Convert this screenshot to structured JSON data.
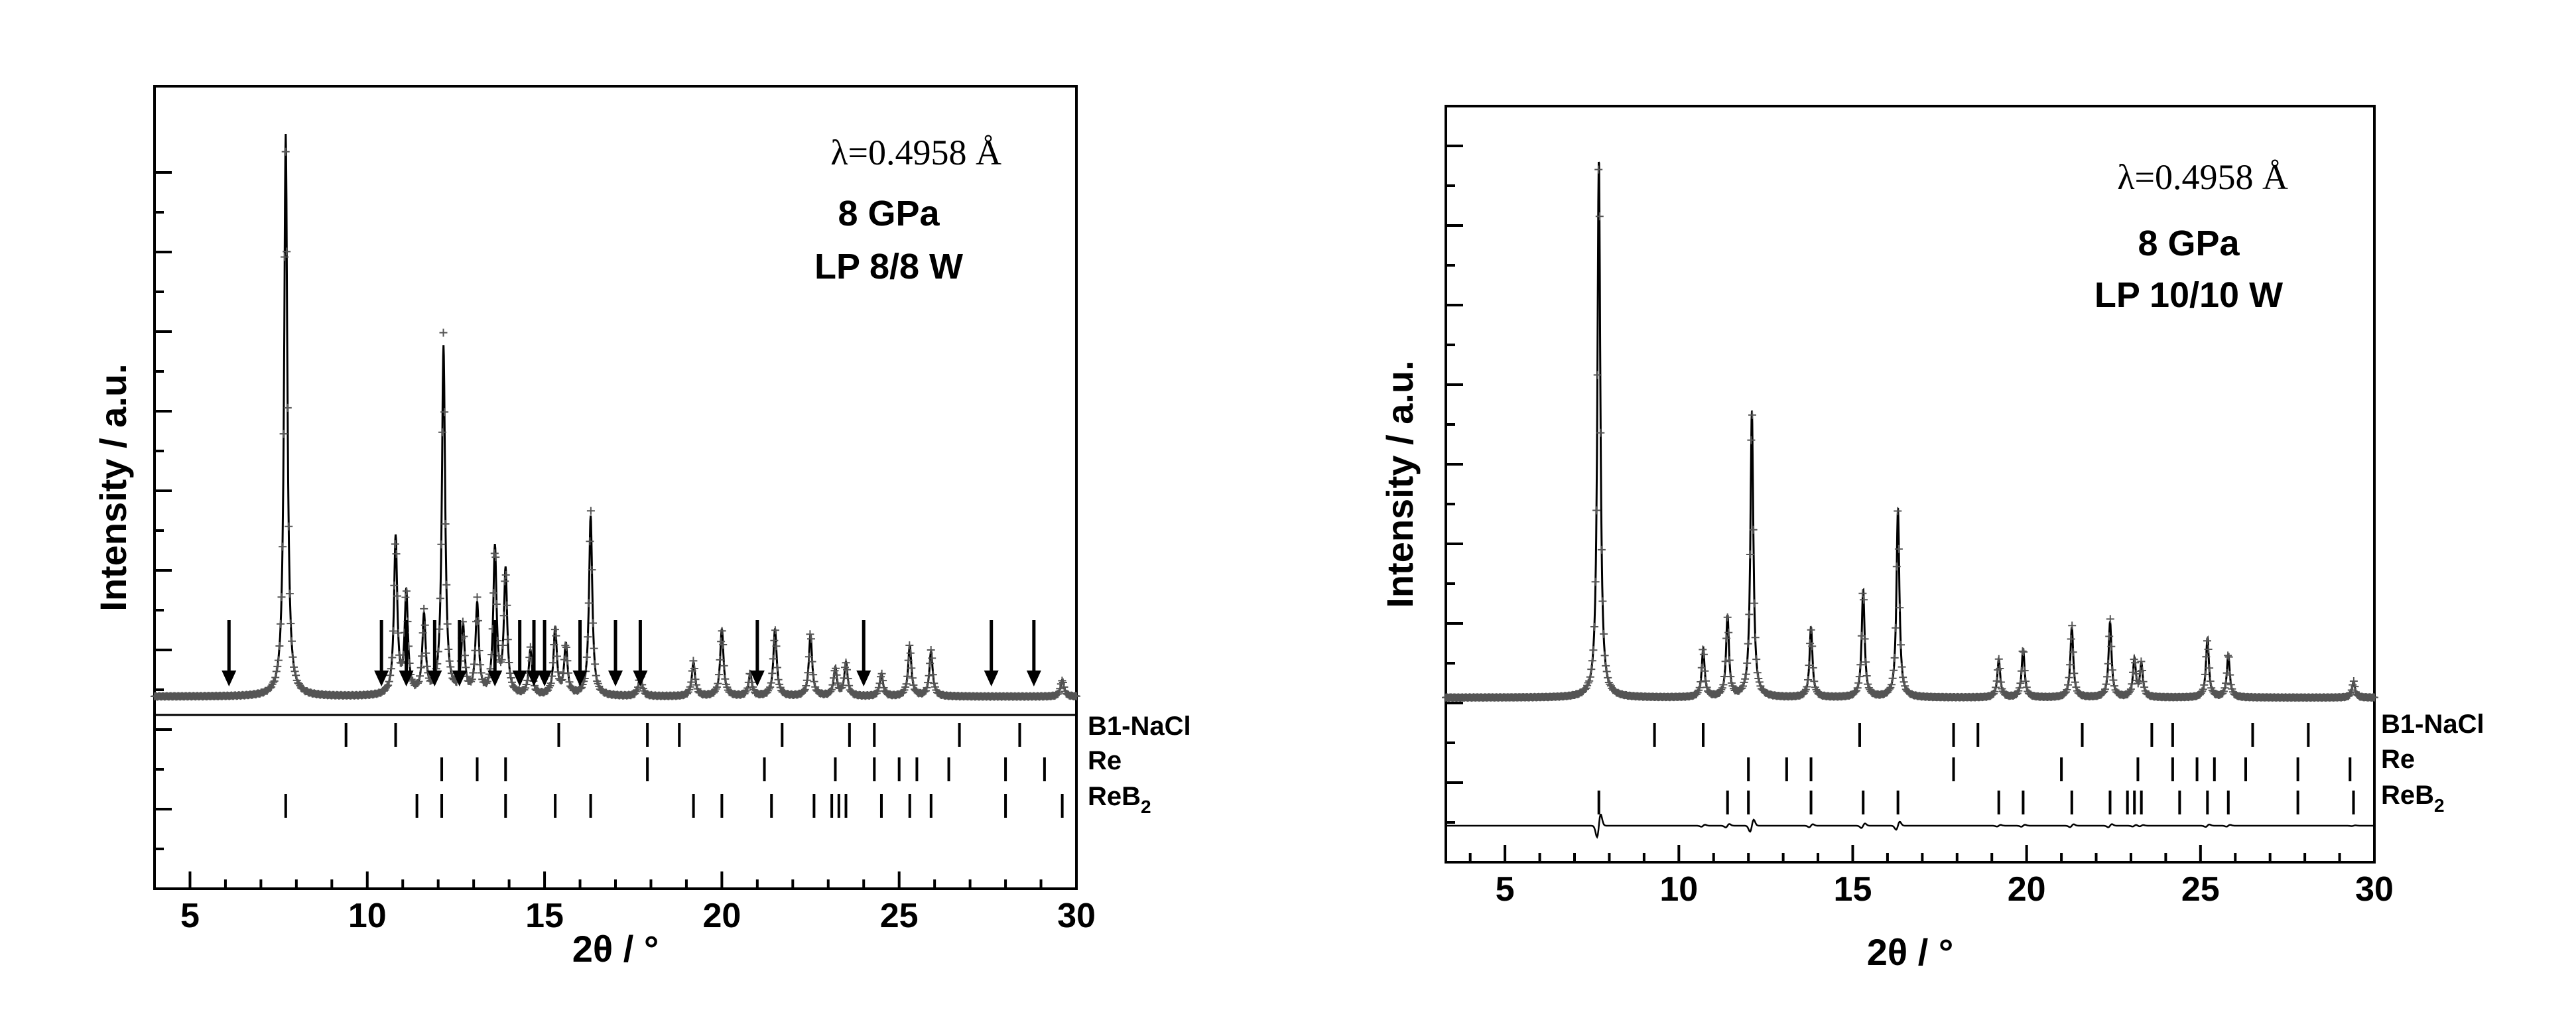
{
  "chart_data": [
    {
      "type": "line",
      "xlabel": "2θ / °",
      "ylabel": "Intensity / a.u.",
      "xlim": [
        4,
        30
      ],
      "xticks": [
        5,
        10,
        15,
        20,
        25,
        30
      ],
      "annotations": {
        "wavelength": "λ=0.4958 Å",
        "pressure": "8 GPa",
        "sample": "LP 8/8 W"
      },
      "background_level": 0.015,
      "peaks": [
        {
          "x": 7.7,
          "y": 1.0
        },
        {
          "x": 10.8,
          "y": 0.28
        },
        {
          "x": 11.1,
          "y": 0.18
        },
        {
          "x": 11.6,
          "y": 0.14
        },
        {
          "x": 12.15,
          "y": 0.62
        },
        {
          "x": 12.7,
          "y": 0.12
        },
        {
          "x": 13.1,
          "y": 0.16
        },
        {
          "x": 13.6,
          "y": 0.26
        },
        {
          "x": 13.9,
          "y": 0.22
        },
        {
          "x": 14.6,
          "y": 0.08
        },
        {
          "x": 15.3,
          "y": 0.12
        },
        {
          "x": 15.6,
          "y": 0.09
        },
        {
          "x": 16.3,
          "y": 0.32
        },
        {
          "x": 17.7,
          "y": 0.04
        },
        {
          "x": 19.2,
          "y": 0.06
        },
        {
          "x": 20.0,
          "y": 0.12
        },
        {
          "x": 20.8,
          "y": 0.04
        },
        {
          "x": 21.5,
          "y": 0.12
        },
        {
          "x": 22.5,
          "y": 0.11
        },
        {
          "x": 23.2,
          "y": 0.05
        },
        {
          "x": 23.5,
          "y": 0.06
        },
        {
          "x": 24.5,
          "y": 0.04
        },
        {
          "x": 25.3,
          "y": 0.09
        },
        {
          "x": 25.9,
          "y": 0.08
        },
        {
          "x": 29.6,
          "y": 0.03
        }
      ],
      "arrows_x": [
        6.1,
        10.4,
        11.1,
        11.9,
        12.6,
        13.6,
        14.3,
        14.7,
        15.0,
        16.0,
        17.0,
        17.7,
        21.0,
        24.0,
        27.6,
        28.8
      ],
      "tick_rows": [
        {
          "name": "B1-NaCl",
          "x": [
            9.4,
            10.8,
            15.4,
            17.9,
            18.8,
            21.7,
            23.6,
            24.3,
            26.7,
            28.4
          ]
        },
        {
          "name": "Re",
          "x": [
            12.1,
            13.1,
            13.9,
            17.9,
            21.2,
            23.2,
            24.3,
            25.0,
            25.5,
            26.4,
            28.0,
            29.1
          ]
        },
        {
          "name": "ReB2",
          "x": [
            7.7,
            11.4,
            12.1,
            13.9,
            15.3,
            16.3,
            19.2,
            20.0,
            21.4,
            22.6,
            23.1,
            23.3,
            23.5,
            24.5,
            25.3,
            25.9,
            28.0,
            29.6
          ]
        }
      ]
    },
    {
      "type": "line",
      "xlabel": "2θ / °",
      "ylabel": "Intensity / a.u.",
      "xlim": [
        3.3,
        30
      ],
      "xticks": [
        5,
        10,
        15,
        20,
        25,
        30
      ],
      "annotations": {
        "wavelength": "λ=0.4958 Å",
        "pressure": "8 GPa",
        "sample": "LP 10/10 W"
      },
      "background_level": 0.01,
      "peaks": [
        {
          "x": 7.7,
          "y": 1.0
        },
        {
          "x": 10.7,
          "y": 0.09
        },
        {
          "x": 11.4,
          "y": 0.15
        },
        {
          "x": 12.1,
          "y": 0.53
        },
        {
          "x": 13.8,
          "y": 0.13
        },
        {
          "x": 15.3,
          "y": 0.2
        },
        {
          "x": 16.3,
          "y": 0.35
        },
        {
          "x": 19.2,
          "y": 0.07
        },
        {
          "x": 19.9,
          "y": 0.09
        },
        {
          "x": 21.3,
          "y": 0.13
        },
        {
          "x": 22.4,
          "y": 0.14
        },
        {
          "x": 23.1,
          "y": 0.07
        },
        {
          "x": 23.3,
          "y": 0.06
        },
        {
          "x": 25.2,
          "y": 0.11
        },
        {
          "x": 25.8,
          "y": 0.08
        },
        {
          "x": 29.4,
          "y": 0.03
        }
      ],
      "tick_rows": [
        {
          "name": "B1-NaCl",
          "x": [
            9.3,
            10.7,
            15.2,
            17.9,
            18.6,
            21.6,
            23.6,
            24.2,
            26.5,
            28.1
          ]
        },
        {
          "name": "Re",
          "x": [
            12.0,
            13.1,
            13.8,
            17.9,
            21.0,
            23.2,
            24.2,
            24.9,
            25.4,
            26.3,
            27.8,
            29.3
          ]
        },
        {
          "name": "ReB2",
          "x": [
            7.7,
            11.4,
            12.0,
            13.8,
            15.3,
            16.3,
            19.2,
            19.9,
            21.3,
            22.4,
            22.9,
            23.1,
            23.3,
            24.4,
            25.2,
            25.8,
            27.8,
            29.4
          ]
        }
      ],
      "difference_curve": true
    }
  ]
}
